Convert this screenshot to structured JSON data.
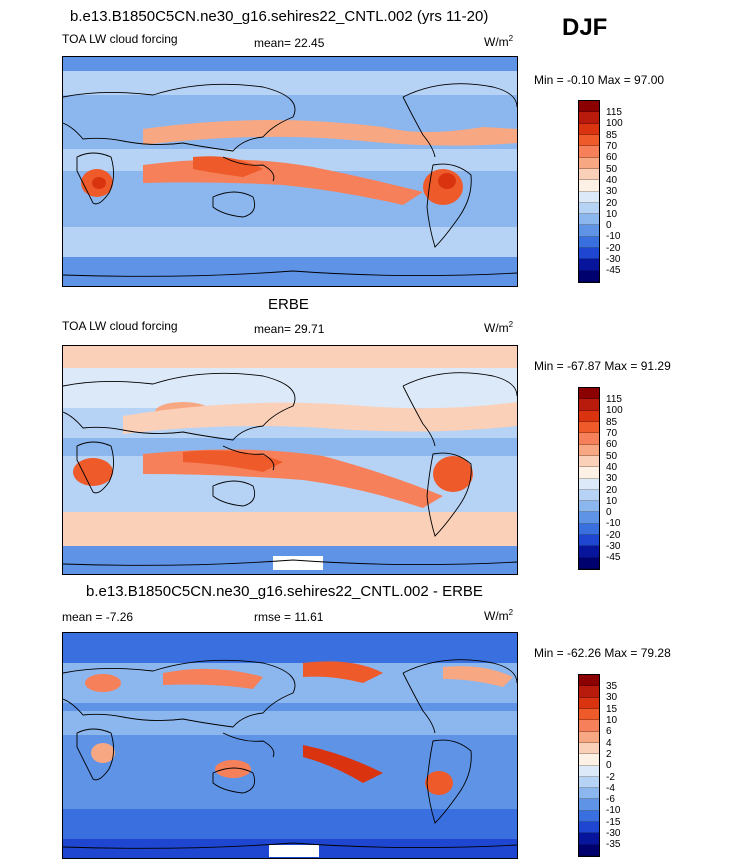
{
  "season": "DJF",
  "units": "W/m2",
  "panels": [
    {
      "title": "b.e13.B1850C5CN.ne30_g16.sehires22_CNTL.002 (yrs 11-20)",
      "left_label": "TOA LW cloud forcing",
      "mid_label": "mean=  22.45",
      "units_main": "W/m",
      "units_sup": "2",
      "minmax": "Min =  -0.10 Max =  97.00",
      "levels": [
        "115",
        "100",
        "85",
        "70",
        "60",
        "50",
        "40",
        "30",
        "20",
        "10",
        "0",
        "-10",
        "-20",
        "-30",
        "-45"
      ]
    },
    {
      "title": "ERBE",
      "left_label": "TOA LW cloud forcing",
      "mid_label": "mean=  29.71",
      "units_main": "W/m",
      "units_sup": "2",
      "minmax": "Min = -67.87 Max =  91.29",
      "levels": [
        "115",
        "100",
        "85",
        "70",
        "60",
        "50",
        "40",
        "30",
        "20",
        "10",
        "0",
        "-10",
        "-20",
        "-30",
        "-45"
      ]
    },
    {
      "title": "b.e13.B1850C5CN.ne30_g16.sehires22_CNTL.002 - ERBE",
      "left_label": "mean =  -7.26",
      "mid_label": "rmse =  11.61",
      "units_main": "W/m",
      "units_sup": "2",
      "minmax": "Min = -62.26 Max =  79.28",
      "levels": [
        "35",
        "30",
        "15",
        "10",
        "6",
        "4",
        "2",
        "0",
        "-2",
        "-4",
        "-6",
        "-10",
        "-15",
        "-30",
        "-35"
      ]
    }
  ],
  "colorbar_colors": [
    "#8b0000",
    "#b81b0b",
    "#d9340f",
    "#ee5a2a",
    "#f6805a",
    "#f7a883",
    "#fbd0b9",
    "#fdf1e6",
    "#dce9f9",
    "#b6d2f4",
    "#8cb6ee",
    "#5e93e6",
    "#3a6fe0",
    "#1f46d0",
    "#07159c",
    "#00006e"
  ]
}
